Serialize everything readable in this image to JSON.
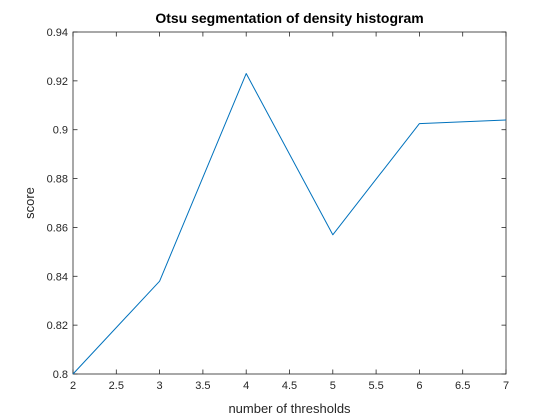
{
  "chart_data": {
    "type": "line",
    "title": "Otsu segmentation of density histogram",
    "xlabel": "number of thresholds",
    "ylabel": "score",
    "xlim": [
      2,
      7
    ],
    "ylim": [
      0.8,
      0.94
    ],
    "x_ticks": [
      "2",
      "2.5",
      "3",
      "3.5",
      "4",
      "4.5",
      "5",
      "5.5",
      "6",
      "6.5",
      "7"
    ],
    "y_ticks": [
      "0.8",
      "0.82",
      "0.84",
      "0.86",
      "0.88",
      "0.9",
      "0.92",
      "0.94"
    ],
    "grid": false,
    "series": [
      {
        "x": [
          2,
          3,
          4,
          5,
          6,
          7
        ],
        "values": [
          0.8,
          0.838,
          0.923,
          0.857,
          0.9025,
          0.904
        ],
        "color": "#0072BD"
      }
    ]
  }
}
